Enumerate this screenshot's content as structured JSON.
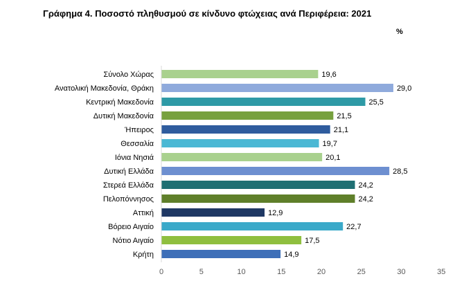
{
  "chart_data": {
    "type": "bar",
    "orientation": "horizontal",
    "title": "Γράφημα 4. Ποσοστό πληθυσμού σε κίνδυνο φτώχειας ανά Περιφέρεια: 2021",
    "unit": "%",
    "categories": [
      "Σύνολο Χώρας",
      "Ανατολική Μακεδονία, Θράκη",
      "Κεντρική Μακεδονία",
      "Δυτική Μακεδονία",
      "Ήπειρος",
      "Θεσσαλία",
      "Ιόνια Νησιά",
      "Δυτική Ελλάδα",
      "Στερεά Ελλάδα",
      "Πελοπόννησος",
      "Αττική",
      "Βόρειο Αιγαίο",
      "Νότιο Αιγαίο",
      "Κρήτη"
    ],
    "values": [
      19.6,
      29.0,
      25.5,
      21.5,
      21.1,
      19.7,
      20.1,
      28.5,
      24.2,
      24.2,
      12.9,
      22.7,
      17.5,
      14.9
    ],
    "value_labels": [
      "19,6",
      "29,0",
      "25,5",
      "21,5",
      "21,1",
      "19,7",
      "20,1",
      "28,5",
      "24,2",
      "24,2",
      "12,9",
      "22,7",
      "17,5",
      "14,9"
    ],
    "bar_colors": [
      "#a9d18e",
      "#8faadc",
      "#2e9aa6",
      "#77a13e",
      "#2f5c9e",
      "#4bb8d4",
      "#a9d18e",
      "#6d8fd0",
      "#1f6f73",
      "#5f7f2a",
      "#1f3864",
      "#3aa9c9",
      "#8fbf3f",
      "#3e6fb8"
    ],
    "xlim": [
      0,
      35
    ],
    "xticks": [
      0,
      5,
      10,
      15,
      20,
      25,
      30,
      35
    ],
    "grid": false,
    "legend": "none"
  }
}
